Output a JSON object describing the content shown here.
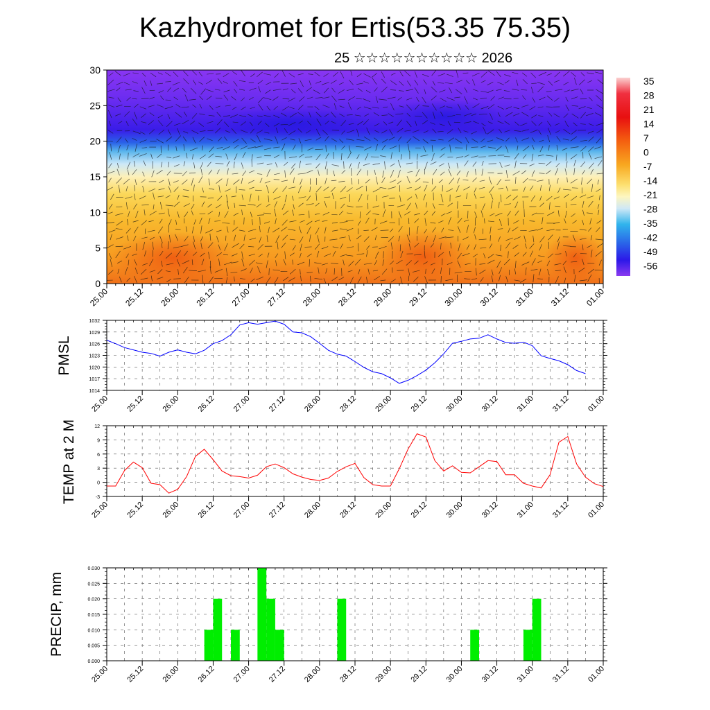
{
  "header": {
    "title": "Kazhydromet for Ertis(53.35 75.35)",
    "subtitle": "25 ☆☆☆☆☆☆☆☆☆☆ 2026"
  },
  "time_labels": [
    "25.00",
    "25.12",
    "26.00",
    "26.12",
    "27.00",
    "27.12",
    "28.00",
    "28.12",
    "29.00",
    "29.12",
    "30.00",
    "30.12",
    "31.00",
    "31.12",
    "01.00"
  ],
  "colors": {
    "pressure_line": "#0000ff",
    "temp_line": "#ff0000",
    "precip_bar": "#00ee00",
    "frame": "#000000"
  },
  "chart_data": [
    {
      "type": "heatmap",
      "name": "cross-section",
      "title": "",
      "x_labels": [
        "25.00",
        "25.12",
        "26.00",
        "26.12",
        "27.00",
        "27.12",
        "28.00",
        "28.12",
        "29.00",
        "29.12",
        "30.00",
        "30.12",
        "31.00",
        "31.12",
        "01.00"
      ],
      "ylim": [
        0,
        30
      ],
      "y_ticks": [
        0,
        5,
        10,
        15,
        20,
        25,
        30
      ],
      "colorbar_labels": [
        "35",
        "28",
        "21",
        "14",
        "7",
        "0",
        "-7",
        "-14",
        "-21",
        "-28",
        "-35",
        "-42",
        "-49",
        "-56"
      ],
      "profile_levels": [
        0,
        5,
        10,
        15,
        20,
        25,
        30
      ],
      "profile_values": [
        10,
        7,
        2,
        -12,
        -40,
        -60,
        -55
      ],
      "overlay": "wind vectors"
    },
    {
      "type": "line",
      "name": "pressure",
      "ylabel": "PMSL",
      "ylim": [
        1014,
        1032
      ],
      "y_ticks": [
        1014,
        1017,
        1020,
        1023,
        1026,
        1029,
        1032
      ],
      "x_labels": [
        "25.00",
        "25.12",
        "26.00",
        "26.12",
        "27.00",
        "27.12",
        "28.00",
        "28.12",
        "29.00",
        "29.12",
        "30.00",
        "30.12",
        "31.00",
        "31.12",
        "01.00"
      ],
      "step_hours": 3,
      "values": [
        1026.9,
        1026.0,
        1025.0,
        1024.4,
        1023.8,
        1023.5,
        1022.8,
        1023.8,
        1024.4,
        1023.8,
        1023.4,
        1024.3,
        1026.0,
        1026.8,
        1028.3,
        1030.8,
        1031.4,
        1031.0,
        1031.4,
        1031.8,
        1031.0,
        1029.0,
        1028.8,
        1027.8,
        1026.1,
        1024.3,
        1023.3,
        1022.8,
        1021.4,
        1019.9,
        1018.8,
        1018.3,
        1017.2,
        1015.8,
        1016.6,
        1017.8,
        1019.2,
        1021.1,
        1023.4,
        1026.1,
        1026.6,
        1027.2,
        1027.4,
        1028.3,
        1027.2,
        1026.3,
        1026.1,
        1026.4,
        1025.5,
        1022.9,
        1022.2,
        1021.6,
        1020.6,
        1019.1,
        1018.3
      ]
    },
    {
      "type": "line",
      "name": "temperature",
      "ylabel": "TEMP at 2 M",
      "ylim": [
        -3,
        12
      ],
      "y_ticks": [
        -3,
        0,
        3,
        6,
        9,
        12
      ],
      "x_labels": [
        "25.00",
        "25.12",
        "26.00",
        "26.12",
        "27.00",
        "27.12",
        "28.00",
        "28.12",
        "29.00",
        "29.12",
        "30.00",
        "30.12",
        "31.00",
        "31.12",
        "01.00"
      ],
      "step_hours": 3,
      "values": [
        -0.8,
        -0.8,
        2.5,
        4.3,
        3.1,
        -0.2,
        -0.5,
        -2.3,
        -1.5,
        1.2,
        5.5,
        7.0,
        4.8,
        2.4,
        1.4,
        1.2,
        0.9,
        1.5,
        3.3,
        3.9,
        3.1,
        1.8,
        1.1,
        0.6,
        0.4,
        0.9,
        2.3,
        3.3,
        4.0,
        1.0,
        -0.5,
        -0.8,
        -0.8,
        2.9,
        7.1,
        10.3,
        9.6,
        4.6,
        2.4,
        3.5,
        2.1,
        2.0,
        3.3,
        4.6,
        4.4,
        1.6,
        1.6,
        -0.2,
        -0.8,
        -1.2,
        1.6,
        8.5,
        9.7,
        3.9,
        1.1,
        -0.3,
        -0.9
      ]
    },
    {
      "type": "bar",
      "name": "precipitation",
      "ylabel": "PRECIP, mm",
      "ylim": [
        0,
        0.03
      ],
      "y_ticks": [
        "0.000",
        "0.005",
        "0.010",
        "0.015",
        "0.020",
        "0.025",
        "0.030"
      ],
      "x_labels": [
        "25.00",
        "25.12",
        "26.00",
        "26.12",
        "27.00",
        "27.12",
        "28.00",
        "28.12",
        "29.00",
        "29.12",
        "30.00",
        "30.12",
        "31.00",
        "31.12",
        "01.00"
      ],
      "step_hours": 3,
      "bars": [
        {
          "index": 11,
          "value": 0.01
        },
        {
          "index": 12,
          "value": 0.02
        },
        {
          "index": 14,
          "value": 0.01
        },
        {
          "index": 17,
          "value": 0.03
        },
        {
          "index": 18,
          "value": 0.02
        },
        {
          "index": 19,
          "value": 0.01
        },
        {
          "index": 26,
          "value": 0.02
        },
        {
          "index": 41,
          "value": 0.01
        },
        {
          "index": 47,
          "value": 0.01
        },
        {
          "index": 48,
          "value": 0.02
        }
      ]
    }
  ]
}
